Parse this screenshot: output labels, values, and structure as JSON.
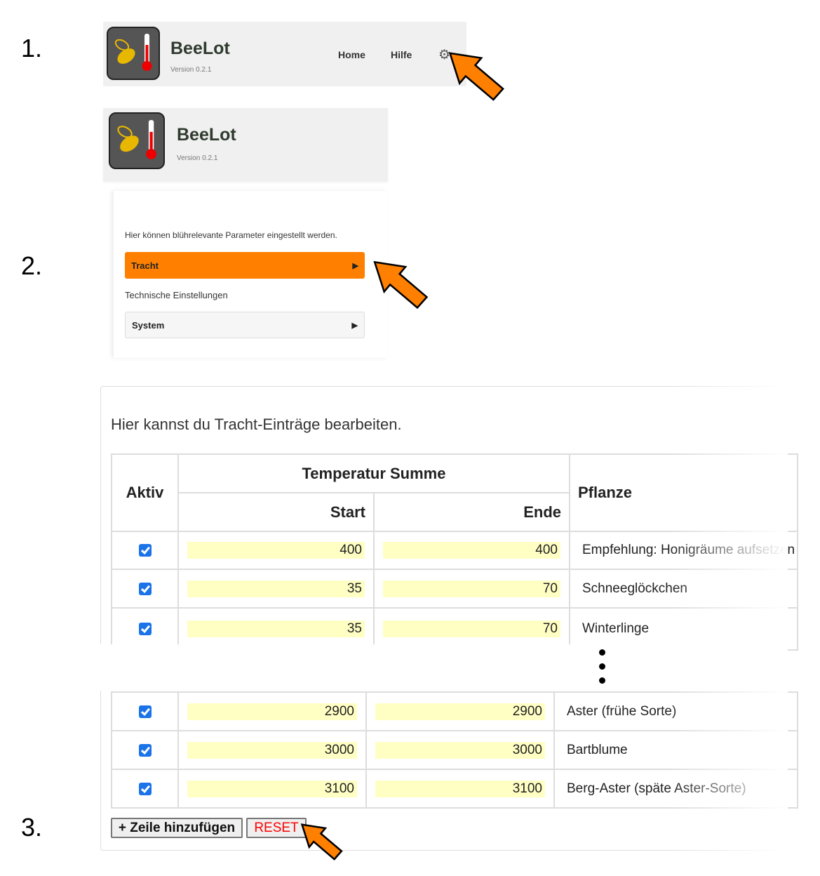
{
  "steps": [
    "1.",
    "2.",
    "3."
  ],
  "app": {
    "title": "BeeLot",
    "version": "Version 0.2.1",
    "nav": {
      "home": "Home",
      "help": "Hilfe"
    },
    "settings_icon": "gear-icon"
  },
  "settings": {
    "intro": "Hier können blührelevante Parameter eingestellt werden.",
    "tracht_button": "Tracht",
    "technical_label": "Technische Einstellungen",
    "system_button": "System",
    "accent": "#ff8000"
  },
  "tracht": {
    "intro": "Hier kannst du Tracht-Einträge bearbeiten.",
    "headers": {
      "active": "Aktiv",
      "temp_sum": "Temperatur Summe",
      "start": "Start",
      "end": "Ende",
      "plant": "Pflanze"
    },
    "rows_top": [
      {
        "active": true,
        "start": "400",
        "end": "400",
        "plant": "Empfehlung: Honigräume aufsetzen"
      },
      {
        "active": true,
        "start": "35",
        "end": "70",
        "plant": "Schneeglöckchen"
      },
      {
        "active": true,
        "start": "35",
        "end": "70",
        "plant": "Winterlinge"
      }
    ],
    "rows_bottom": [
      {
        "active": true,
        "start": "2900",
        "end": "2900",
        "plant": "Aster (frühe Sorte)"
      },
      {
        "active": true,
        "start": "3000",
        "end": "3000",
        "plant": "Bartblume"
      },
      {
        "active": true,
        "start": "3100",
        "end": "3100",
        "plant": "Berg-Aster (späte Aster-Sorte)"
      }
    ],
    "add_row_button": "+ Zeile hinzufügen",
    "reset_button": "RESET",
    "reset_color": "#ff0000",
    "input_bg": "#ffffc4"
  },
  "annotation_arrow_color": "#ff8000"
}
